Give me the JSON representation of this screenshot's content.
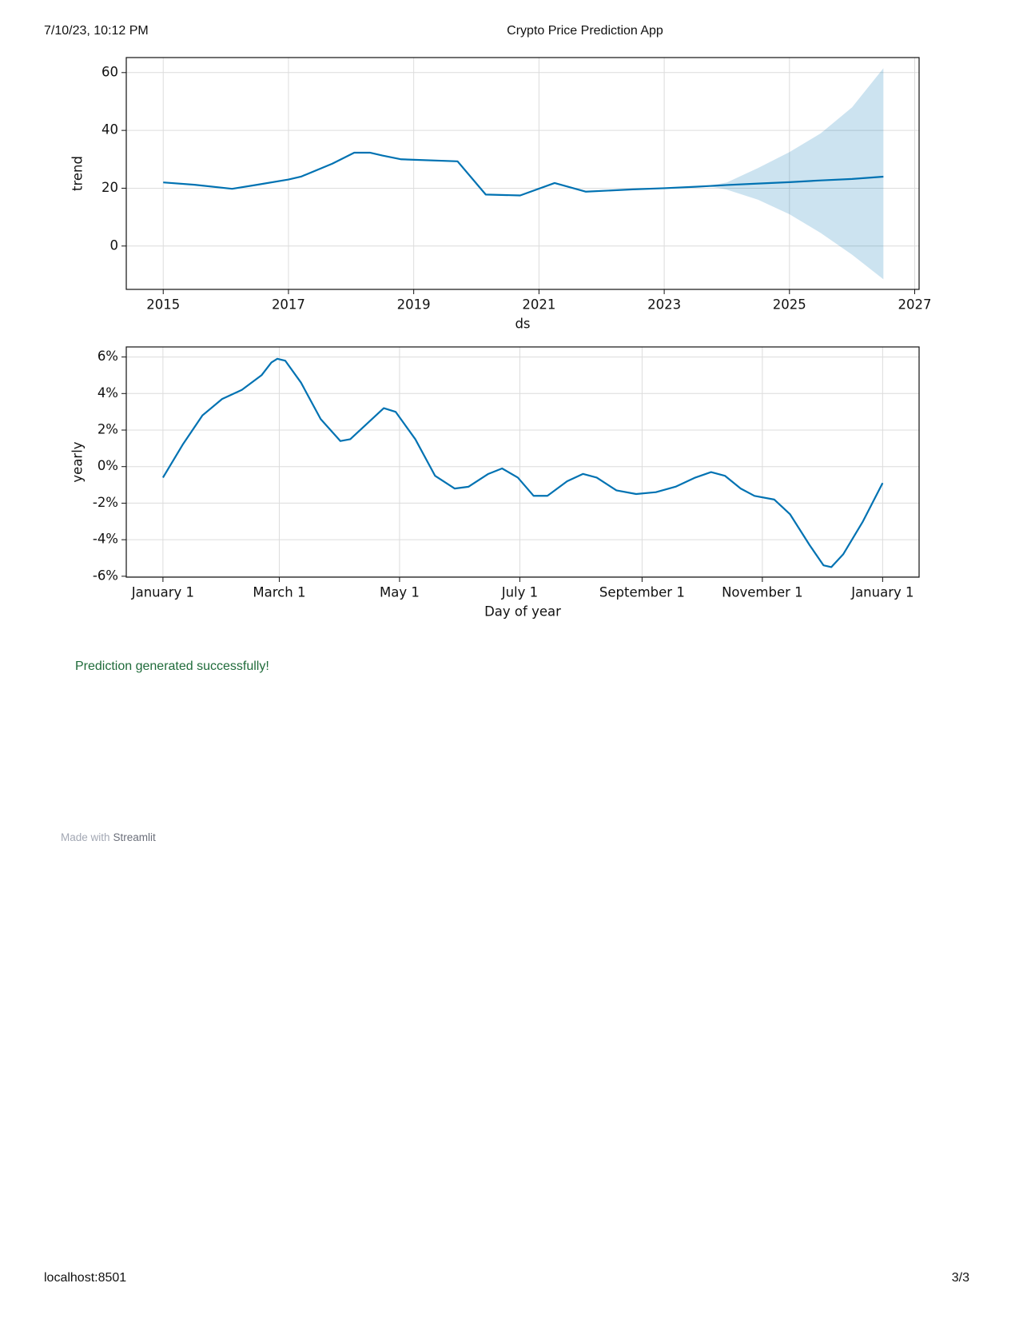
{
  "header": {
    "date": "7/10/23, 10:12 PM",
    "title": "Crypto Price Prediction App"
  },
  "chart_data": [
    {
      "type": "line",
      "ylabel": "trend",
      "xlabel": "ds",
      "grid": true,
      "xlim": [
        2014.41,
        2027.07
      ],
      "ylim": [
        -15,
        65.2
      ],
      "xticks": [
        2015,
        2017,
        2019,
        2021,
        2023,
        2025,
        2027
      ],
      "yticks": [
        0,
        20,
        40,
        60
      ],
      "x": [
        2015,
        2015.5,
        2016.1,
        2016.5,
        2017,
        2017.2,
        2017.7,
        2018.05,
        2018.3,
        2018.5,
        2018.8,
        2019.7,
        2020.15,
        2020.7,
        2021.25,
        2021.75,
        2022.5,
        2023,
        2023.5,
        2024,
        2024.5,
        2025,
        2025.5,
        2026,
        2026.5
      ],
      "series": [
        {
          "color": "#0072b2",
          "values": [
            22,
            21.2,
            19.8,
            21.2,
            23,
            24,
            28.5,
            32.3,
            32.3,
            31.3,
            30,
            29.3,
            17.8,
            17.5,
            21.8,
            18.8,
            19.6,
            20,
            20.5,
            21.1,
            21.6,
            22.1,
            22.7,
            23.2,
            24
          ]
        }
      ],
      "band": {
        "color": "#0072b2",
        "opacity": 0.2,
        "x": [
          2023.7,
          2024,
          2024.5,
          2025,
          2025.5,
          2026,
          2026.5
        ],
        "lower": [
          20.8,
          19.5,
          16,
          11,
          4.5,
          -3,
          -11.5
        ],
        "upper": [
          20.8,
          22,
          27,
          32.5,
          39,
          48,
          61.5
        ]
      }
    },
    {
      "type": "line",
      "ylabel": "yearly",
      "xlabel": "Day of year",
      "grid": true,
      "xlim": [
        -18.6,
        383.5
      ],
      "ylim": [
        -6.05,
        6.55
      ],
      "xticks": [
        {
          "value": 0,
          "label": "January 1"
        },
        {
          "value": 59,
          "label": "March 1"
        },
        {
          "value": 120,
          "label": "May 1"
        },
        {
          "value": 181,
          "label": "July 1"
        },
        {
          "value": 243,
          "label": "September 1"
        },
        {
          "value": 304,
          "label": "November 1"
        },
        {
          "value": 365,
          "label": "January 1"
        }
      ],
      "yticks": [
        {
          "value": -6,
          "label": "-6%"
        },
        {
          "value": -4,
          "label": "-4%"
        },
        {
          "value": -2,
          "label": "-2%"
        },
        {
          "value": 0,
          "label": "0%"
        },
        {
          "value": 2,
          "label": "2%"
        },
        {
          "value": 4,
          "label": "4%"
        },
        {
          "value": 6,
          "label": "6%"
        }
      ],
      "x": [
        0,
        10,
        20,
        30,
        40,
        50,
        55,
        58,
        62,
        70,
        80,
        90,
        95,
        105,
        112,
        118,
        128,
        138,
        148,
        155,
        165,
        172,
        180,
        188,
        195,
        205,
        213,
        220,
        230,
        240,
        250,
        260,
        270,
        278,
        285,
        293,
        300,
        310,
        318,
        328,
        335,
        339,
        345,
        355,
        365
      ],
      "series": [
        {
          "color": "#0072b2",
          "values": [
            -0.6,
            1.2,
            2.8,
            3.7,
            4.2,
            5.0,
            5.7,
            5.9,
            5.8,
            4.6,
            2.6,
            1.4,
            1.5,
            2.5,
            3.2,
            3.0,
            1.5,
            -0.5,
            -1.2,
            -1.1,
            -0.4,
            -0.1,
            -0.6,
            -1.6,
            -1.6,
            -0.8,
            -0.4,
            -0.6,
            -1.3,
            -1.5,
            -1.4,
            -1.1,
            -0.6,
            -0.3,
            -0.5,
            -1.2,
            -1.6,
            -1.8,
            -2.6,
            -4.3,
            -5.4,
            -5.5,
            -4.8,
            -3.0,
            -0.9
          ]
        }
      ]
    }
  ],
  "status": {
    "message": "Prediction generated successfully!"
  },
  "credit": {
    "prefix": "Made with",
    "brand": "Streamlit"
  },
  "footer": {
    "url": "localhost:8501",
    "page": "3/3"
  }
}
